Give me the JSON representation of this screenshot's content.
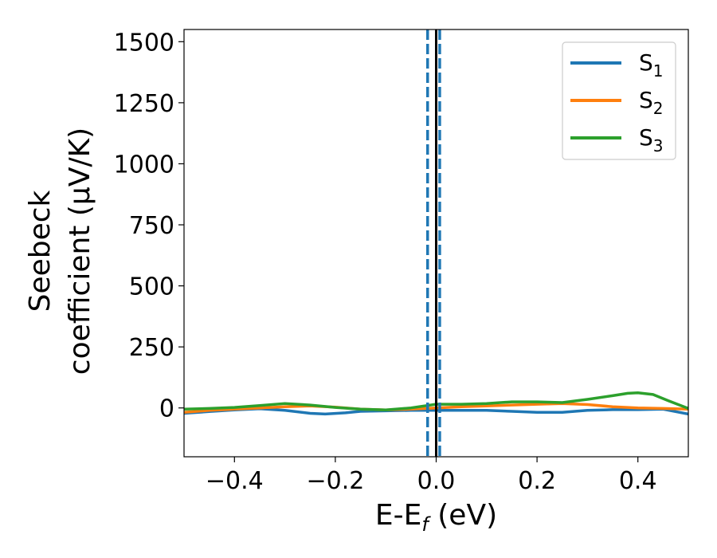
{
  "chart_data": {
    "type": "line",
    "xlabel": "E-E",
    "xlabel_sub": "f",
    "xlabel_suffix": " (eV)",
    "ylabel_line1": "Seebeck",
    "ylabel_line2": "coefficient  (μV/K)",
    "xlim": [
      -0.5,
      0.5
    ],
    "ylim": [
      -200,
      1550
    ],
    "xticks": [
      -0.4,
      -0.2,
      0.0,
      0.2,
      0.4
    ],
    "xtick_labels": [
      "−0.4",
      "−0.2",
      "0.0",
      "0.2",
      "0.4"
    ],
    "yticks": [
      0,
      250,
      500,
      750,
      1000,
      1250,
      1500
    ],
    "ytick_labels": [
      "0",
      "250",
      "500",
      "750",
      "1000",
      "1250",
      "1500"
    ],
    "legend_position": "top-right",
    "series": [
      {
        "name": "S",
        "name_sub": "1",
        "color": "#1f77b4",
        "x": [
          -0.5,
          -0.45,
          -0.4,
          -0.35,
          -0.3,
          -0.25,
          -0.22,
          -0.18,
          -0.15,
          -0.1,
          -0.05,
          0.0,
          0.05,
          0.1,
          0.15,
          0.2,
          0.25,
          0.3,
          0.35,
          0.4,
          0.45,
          0.5
        ],
        "y": [
          -22,
          -15,
          -8,
          -3,
          -10,
          -22,
          -25,
          -20,
          -14,
          -12,
          -10,
          -10,
          -10,
          -10,
          -14,
          -18,
          -18,
          -10,
          -7,
          -7,
          -5,
          -25
        ]
      },
      {
        "name": "S",
        "name_sub": "2",
        "color": "#ff7f0e",
        "x": [
          -0.5,
          -0.45,
          -0.4,
          -0.35,
          -0.3,
          -0.25,
          -0.2,
          -0.15,
          -0.1,
          -0.05,
          0.0,
          0.05,
          0.1,
          0.15,
          0.2,
          0.25,
          0.3,
          0.35,
          0.4,
          0.45,
          0.5
        ],
        "y": [
          -18,
          -10,
          -5,
          0,
          5,
          8,
          3,
          -5,
          -8,
          -5,
          0,
          5,
          8,
          12,
          15,
          18,
          14,
          5,
          0,
          -2,
          -5
        ]
      },
      {
        "name": "S",
        "name_sub": "3",
        "color": "#2ca02c",
        "x": [
          -0.5,
          -0.45,
          -0.4,
          -0.35,
          -0.3,
          -0.25,
          -0.2,
          -0.15,
          -0.1,
          -0.05,
          0.0,
          0.05,
          0.1,
          0.15,
          0.2,
          0.25,
          0.3,
          0.35,
          0.38,
          0.4,
          0.43,
          0.46,
          0.5
        ],
        "y": [
          -5,
          -2,
          2,
          10,
          18,
          12,
          2,
          -5,
          -8,
          0,
          15,
          15,
          18,
          25,
          25,
          22,
          35,
          50,
          60,
          62,
          55,
          30,
          -2
        ]
      }
    ],
    "vlines": [
      {
        "x": -0.017,
        "style": "dashed",
        "color": "#1f77b4"
      },
      {
        "x": 0.0,
        "style": "solid",
        "color": "#000000"
      },
      {
        "x": 0.007,
        "style": "dashed",
        "color": "#1f77b4"
      }
    ]
  }
}
